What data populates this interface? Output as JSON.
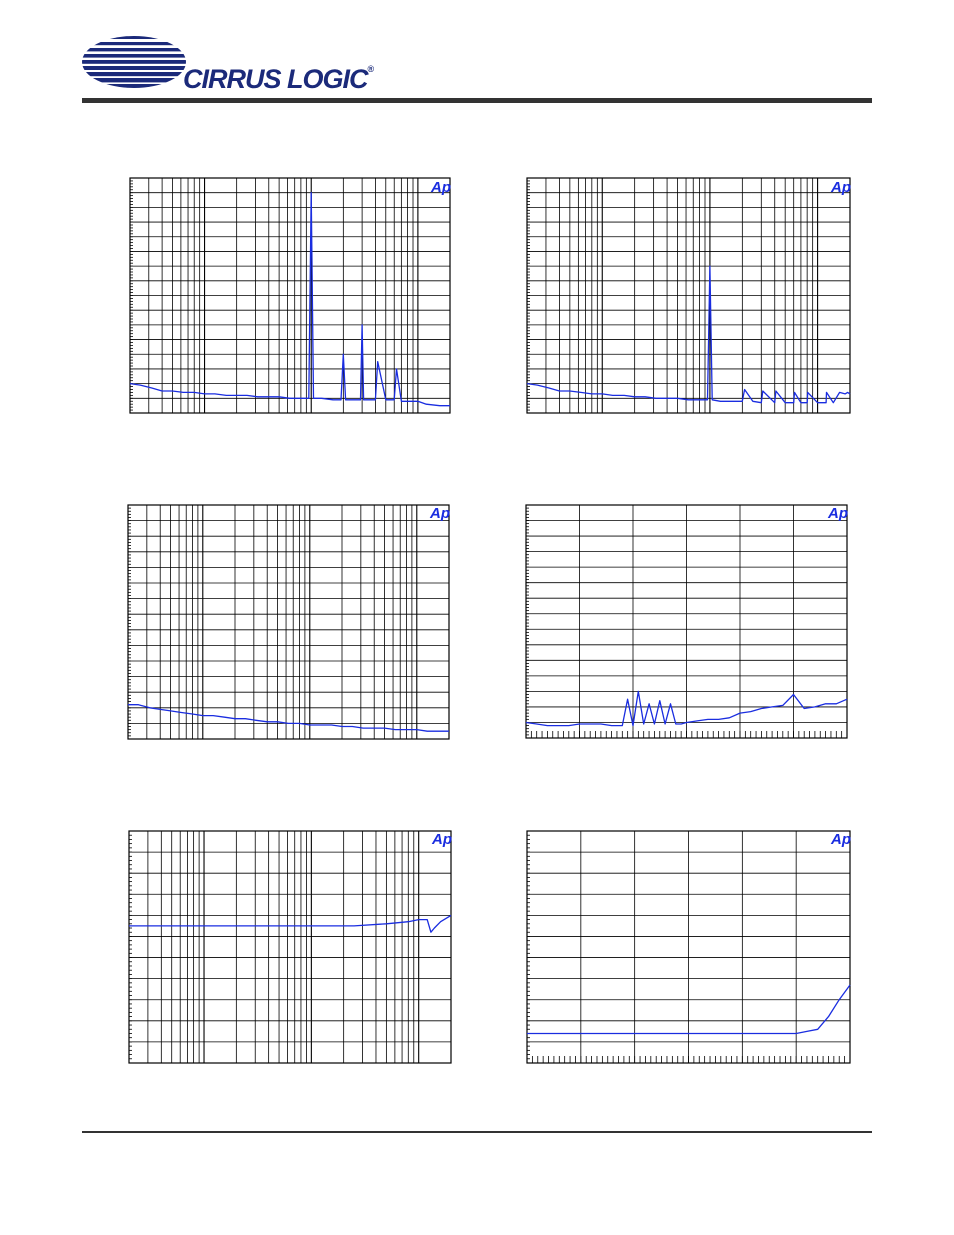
{
  "header": {
    "logo_text": "CIRRUS LOGIC",
    "logo_mark": "®",
    "brand_color": "#1b2a7a"
  },
  "colors": {
    "trace": "#1a2de0",
    "grid": "#000000",
    "ap_badge": "#1a2de0"
  },
  "chart_data": [
    {
      "id": "c1",
      "type": "line",
      "xscale": "log",
      "badge": "Ap",
      "x": [
        20,
        25,
        32,
        40,
        50,
        63,
        80,
        100,
        125,
        160,
        200,
        250,
        315,
        400,
        500,
        630,
        800,
        950,
        1000,
        1050,
        1250,
        1600,
        1900,
        2000,
        2100,
        2500,
        2900,
        3000,
        3100,
        3500,
        4000,
        4200,
        5000,
        6000,
        6300,
        7000,
        8000,
        10000,
        12000,
        16000,
        20000
      ],
      "y": [
        -140,
        -141,
        -143,
        -145,
        -145,
        -146,
        -146,
        -147,
        -147,
        -148,
        -148,
        -148,
        -149,
        -149,
        -149,
        -150,
        -150,
        -150,
        -10,
        -150,
        -150,
        -151,
        -151,
        -120,
        -151,
        -151,
        -151,
        -100,
        -151,
        -151,
        -151,
        -125,
        -151,
        -151,
        -130,
        -152,
        -152,
        -152,
        -154,
        -155,
        -155
      ],
      "ylim": [
        -160,
        0
      ],
      "xlim": [
        20,
        20000
      ],
      "yticks": 16
    },
    {
      "id": "c2",
      "type": "line",
      "xscale": "log",
      "badge": "Ap",
      "x": [
        20,
        25,
        32,
        40,
        50,
        63,
        80,
        100,
        125,
        160,
        200,
        250,
        315,
        400,
        500,
        630,
        800,
        950,
        1000,
        1050,
        1250,
        1600,
        2000,
        2100,
        2500,
        3000,
        3100,
        4000,
        4100,
        5000,
        6000,
        6100,
        7000,
        8000,
        8100,
        10000,
        12000,
        12100,
        14000,
        16000,
        18000,
        19000,
        20000
      ],
      "y": [
        -140,
        -141,
        -143,
        -145,
        -145,
        -146,
        -147,
        -147,
        -148,
        -148,
        -149,
        -149,
        -150,
        -150,
        -150,
        -151,
        -151,
        -151,
        -60,
        -151,
        -152,
        -152,
        -152,
        -144,
        -152,
        -153,
        -145,
        -153,
        -145,
        -153,
        -153,
        -146,
        -153,
        -153,
        -146,
        -153,
        -153,
        -146,
        -153,
        -146,
        -147,
        -146,
        -147
      ],
      "ylim": [
        -160,
        0
      ],
      "xlim": [
        20,
        20000
      ],
      "yticks": 16
    },
    {
      "id": "c3",
      "type": "line",
      "xscale": "log",
      "badge": "Ap",
      "x": [
        20,
        25,
        32,
        40,
        50,
        63,
        80,
        100,
        125,
        160,
        200,
        250,
        315,
        400,
        500,
        630,
        800,
        1000,
        1250,
        1600,
        2000,
        2500,
        3150,
        4000,
        5000,
        6300,
        8000,
        10000,
        12500,
        16000,
        20000
      ],
      "y": [
        -128,
        -128,
        -130,
        -131,
        -132,
        -133,
        -134,
        -135,
        -135,
        -136,
        -137,
        -137,
        -138,
        -139,
        -139,
        -140,
        -140,
        -141,
        -141,
        -141,
        -142,
        -142,
        -143,
        -143,
        -143,
        -144,
        -144,
        -144,
        -145,
        -145,
        -145
      ],
      "ylim": [
        -150,
        0
      ],
      "xlim": [
        20,
        20000
      ],
      "yticks": 15
    },
    {
      "id": "c4",
      "type": "line",
      "xscale": "linear",
      "badge": "Ap",
      "x": [
        0,
        2,
        4,
        6,
        8,
        10,
        12,
        14,
        16,
        18,
        19,
        20,
        21,
        22,
        23,
        24,
        25,
        26,
        27,
        28,
        29,
        30,
        32,
        34,
        36,
        38,
        40,
        42,
        44,
        46,
        48,
        50,
        52,
        54,
        56,
        58,
        60
      ],
      "y": [
        -140,
        -141,
        -142,
        -142,
        -142,
        -141,
        -141,
        -141,
        -142,
        -142,
        -125,
        -142,
        -120,
        -141,
        -128,
        -141,
        -126,
        -141,
        -128,
        -141,
        -141,
        -140,
        -139,
        -138,
        -138,
        -137,
        -134,
        -133,
        -131,
        -130,
        -129,
        -122,
        -131,
        -130,
        -128,
        -128,
        -125
      ],
      "ylim": [
        -150,
        0
      ],
      "xlim": [
        0,
        60
      ],
      "yticks": 15
    },
    {
      "id": "c5",
      "type": "line",
      "xscale": "log",
      "badge": "Ap",
      "x": [
        20,
        40,
        80,
        160,
        315,
        630,
        1250,
        2500,
        5000,
        8000,
        10000,
        12000,
        13000,
        14000,
        16000,
        20000
      ],
      "y": [
        -3.5,
        -3.5,
        -3.5,
        -3.5,
        -3.5,
        -3.5,
        -3.5,
        -3.5,
        -3.4,
        -3.3,
        -3.2,
        -3.2,
        -3.8,
        -3.6,
        -3.3,
        -3.0
      ],
      "ylim": [
        -10,
        1
      ],
      "xlim": [
        20,
        20000
      ],
      "yticks": 11
    },
    {
      "id": "c6",
      "type": "line",
      "xscale": "linear",
      "badge": "Ap",
      "x": [
        0,
        5,
        10,
        15,
        20,
        25,
        30,
        35,
        40,
        45,
        50,
        52,
        54,
        56,
        58,
        60
      ],
      "y": [
        -9.6,
        -9.6,
        -9.6,
        -9.6,
        -9.6,
        -9.6,
        -9.6,
        -9.6,
        -9.6,
        -9.6,
        -9.6,
        -9.5,
        -9.4,
        -8.8,
        -8.0,
        -7.3
      ],
      "ylim": [
        -11,
        0
      ],
      "xlim": [
        0,
        60
      ],
      "yticks": 11
    }
  ]
}
